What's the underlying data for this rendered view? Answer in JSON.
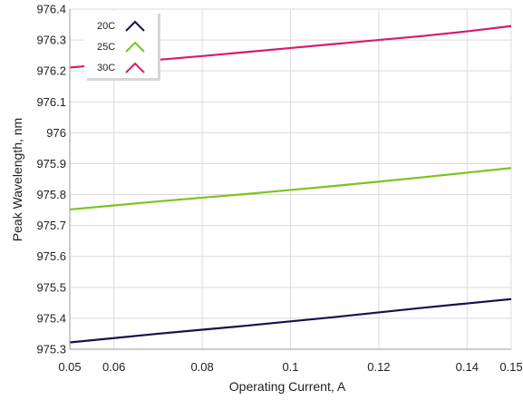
{
  "chart_data": {
    "type": "line",
    "title": "",
    "xlabel": "Operating Current, A",
    "ylabel": "Peak Wavelength, nm",
    "xlim": [
      0.05,
      0.15
    ],
    "ylim": [
      975.3,
      976.4
    ],
    "x_ticks": [
      0.05,
      0.06,
      0.08,
      0.1,
      0.12,
      0.14,
      0.15
    ],
    "x_tick_labels": [
      "0.05",
      "0.06",
      "0.08",
      "0.1",
      "0.12",
      "0.14",
      "0.15"
    ],
    "y_ticks": [
      975.3,
      975.4,
      975.5,
      975.6,
      975.7,
      975.8,
      975.9,
      976,
      976.1,
      976.2,
      976.3,
      976.4
    ],
    "y_tick_labels": [
      "975.3",
      "975.4",
      "975.5",
      "975.6",
      "975.7",
      "975.8",
      "975.9",
      "976",
      "976.1",
      "976.2",
      "976.3",
      "976.4"
    ],
    "grid": true,
    "legend_position": "top-left",
    "x": [
      0.05,
      0.06,
      0.07,
      0.08,
      0.09,
      0.1,
      0.11,
      0.12,
      0.13,
      0.14,
      0.15
    ],
    "series": [
      {
        "name": "20C",
        "color": "#14124f",
        "values": [
          975.322,
          975.336,
          975.35,
          975.363,
          975.376,
          975.39,
          975.404,
          975.419,
          975.434,
          975.448,
          975.462
        ]
      },
      {
        "name": "25C",
        "color": "#7cc421",
        "values": [
          975.752,
          975.765,
          975.778,
          975.79,
          975.802,
          975.815,
          975.828,
          975.842,
          975.856,
          975.871,
          975.886
        ]
      },
      {
        "name": "30C",
        "color": "#d81b6a",
        "values": [
          976.211,
          976.223,
          976.236,
          976.248,
          976.261,
          976.274,
          976.287,
          976.3,
          976.313,
          976.328,
          976.345
        ]
      }
    ]
  }
}
